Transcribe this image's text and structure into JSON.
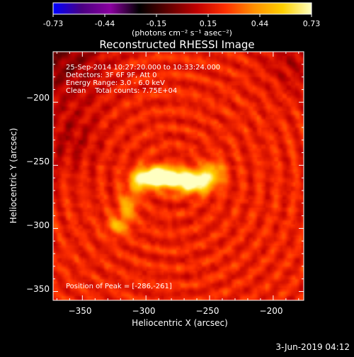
{
  "colorbar": {
    "ticks": [
      "-0.73",
      "-0.44",
      "-0.15",
      "0.15",
      "0.44",
      "0.73"
    ],
    "unit_label": "(photons cm⁻² s⁻¹ asec⁻²)",
    "colormap": [
      "#0000ff",
      "#4b0082",
      "#8b00a0",
      "#000000",
      "#600000",
      "#c00000",
      "#ff3000",
      "#ff9000",
      "#ffd000",
      "#ffffc0"
    ]
  },
  "title": "Reconstructed RHESSI Image",
  "annotations": [
    "25-Sep-2014 10:27:20.000 to 10:33:24.000",
    "Detectors: 3F 6F 9F, Att 0",
    "Energy Range: 3.0 - 6.0 keV",
    "Clean    Total counts: 7.75E+04"
  ],
  "peak_label": "Position of Peak = [-286,-261]",
  "footer_date": "3-Jun-2019 04:12",
  "chart_data": {
    "type": "heatmap",
    "title": "Reconstructed RHESSI Image",
    "xlabel": "Heliocentric X (arcsec)",
    "ylabel": "Heliocentric Y (arcsec)",
    "xlim": [
      -373,
      -176
    ],
    "ylim": [
      -357,
      -160
    ],
    "xticks": [
      -350,
      -300,
      -250,
      -200
    ],
    "yticks": [
      -200,
      -250,
      -300,
      -350
    ],
    "xtick_labels": [
      "−350",
      "−300",
      "−250",
      "−200"
    ],
    "ytick_labels": [
      "−200",
      "−250",
      "−300",
      "−350"
    ],
    "value_range": [
      -0.73,
      0.73
    ],
    "peak": [
      -286,
      -261
    ],
    "sources": [
      {
        "x": -293,
        "y": -259,
        "sx": 7,
        "sy": 5,
        "amp": 0.73
      },
      {
        "x": -281,
        "y": -260,
        "sx": 8,
        "sy": 5,
        "amp": 0.62
      },
      {
        "x": -262,
        "y": -263,
        "sx": 10,
        "sy": 6,
        "amp": 0.68
      },
      {
        "x": -305,
        "y": -262,
        "sx": 6,
        "sy": 6,
        "amp": 0.42
      },
      {
        "x": -314,
        "y": -282,
        "sx": 5,
        "sy": 7,
        "amp": 0.3
      },
      {
        "x": -322,
        "y": -298,
        "sx": 6,
        "sy": 5,
        "amp": 0.28
      },
      {
        "x": -247,
        "y": -255,
        "sx": 6,
        "sy": 6,
        "amp": 0.3
      }
    ],
    "background_level": 0.2
  }
}
